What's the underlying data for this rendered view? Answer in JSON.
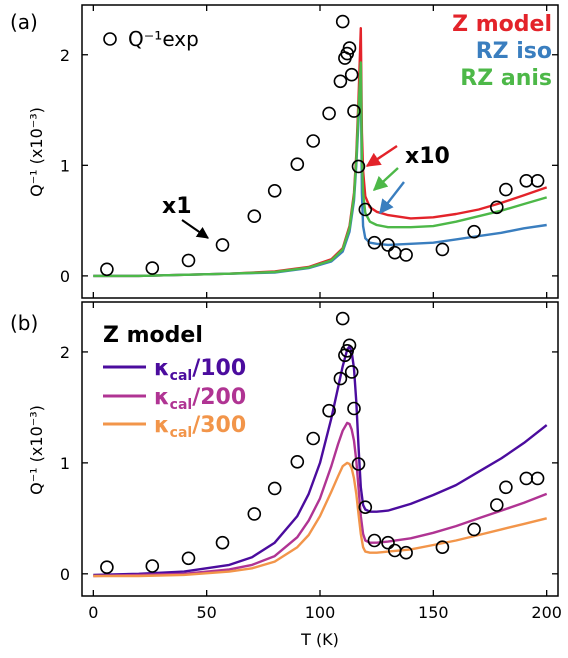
{
  "chart_data": [
    {
      "type": "line",
      "panel_label": "(a)",
      "ylabel": "Q⁻¹ (x10⁻³)",
      "xlim": [
        -5,
        205
      ],
      "ylim": [
        -0.2,
        2.45
      ],
      "xticks": [
        0,
        50,
        100,
        150,
        200
      ],
      "yticks": [
        0,
        1,
        2
      ],
      "experimental": {
        "label": "Q⁻¹exp",
        "x": [
          6,
          26,
          42,
          57,
          71,
          80,
          90,
          97,
          104,
          109,
          110,
          111,
          112,
          113,
          114,
          115,
          117,
          120,
          124,
          130,
          133,
          138,
          154,
          168,
          178,
          182,
          191,
          196
        ],
        "y": [
          0.06,
          0.07,
          0.14,
          0.28,
          0.54,
          0.77,
          1.01,
          1.22,
          1.47,
          1.76,
          2.3,
          1.97,
          2.01,
          2.06,
          1.82,
          1.49,
          0.99,
          0.6,
          0.3,
          0.28,
          0.21,
          0.19,
          0.24,
          0.4,
          0.62,
          0.78,
          0.86,
          0.86
        ]
      },
      "series": [
        {
          "name": "Z model",
          "color": "#e3232a",
          "x": [
            0,
            20,
            40,
            60,
            80,
            95,
            105,
            110,
            113,
            115,
            116,
            117,
            118,
            118.5,
            119,
            120,
            122,
            125,
            130,
            140,
            150,
            160,
            170,
            180,
            190,
            200
          ],
          "y": [
            0,
            0.0,
            0.01,
            0.02,
            0.04,
            0.08,
            0.15,
            0.25,
            0.45,
            0.75,
            1.1,
            1.6,
            2.24,
            1.3,
            0.95,
            0.72,
            0.62,
            0.58,
            0.55,
            0.52,
            0.53,
            0.56,
            0.6,
            0.66,
            0.73,
            0.8
          ]
        },
        {
          "name": "RZ iso",
          "color": "#3a7ebf",
          "x": [
            0,
            20,
            40,
            60,
            80,
            95,
            105,
            110,
            113,
            115,
            116,
            117,
            118,
            118.5,
            119,
            120,
            122,
            125,
            130,
            140,
            150,
            160,
            170,
            180,
            190,
            200
          ],
          "y": [
            0,
            0.0,
            0.01,
            0.02,
            0.03,
            0.07,
            0.13,
            0.22,
            0.4,
            0.68,
            1.0,
            1.4,
            1.8,
            0.75,
            0.45,
            0.34,
            0.3,
            0.29,
            0.28,
            0.29,
            0.3,
            0.33,
            0.36,
            0.39,
            0.43,
            0.46
          ]
        },
        {
          "name": "RZ anis",
          "color": "#4db848",
          "x": [
            0,
            20,
            40,
            60,
            80,
            95,
            105,
            110,
            113,
            115,
            116,
            117,
            118,
            118.5,
            119,
            120,
            122,
            125,
            130,
            140,
            150,
            160,
            170,
            180,
            190,
            200
          ],
          "y": [
            0,
            0.0,
            0.01,
            0.02,
            0.035,
            0.075,
            0.14,
            0.24,
            0.43,
            0.72,
            1.05,
            1.5,
            1.93,
            1.05,
            0.75,
            0.57,
            0.49,
            0.46,
            0.44,
            0.44,
            0.45,
            0.49,
            0.54,
            0.59,
            0.65,
            0.71
          ]
        }
      ],
      "legend": {
        "placement": "top-right",
        "entries": [
          "Z model",
          "RZ iso",
          "RZ anis"
        ]
      },
      "annotations": [
        {
          "text": "x1",
          "color": "#000000"
        },
        {
          "text": "x10",
          "color": "#000000"
        }
      ]
    },
    {
      "type": "line",
      "panel_label": "(b)",
      "xlabel": "T (K)",
      "ylabel": "Q⁻¹ (x10⁻³)",
      "xlim": [
        -5,
        205
      ],
      "ylim": [
        -0.2,
        2.45
      ],
      "xticks": [
        0,
        50,
        100,
        150,
        200
      ],
      "yticks": [
        0,
        1,
        2
      ],
      "legend_title": "Z model",
      "experimental": {
        "x": [
          6,
          26,
          42,
          57,
          71,
          80,
          90,
          97,
          104,
          109,
          110,
          111,
          112,
          113,
          114,
          115,
          117,
          120,
          124,
          130,
          133,
          138,
          154,
          168,
          178,
          182,
          191,
          196
        ],
        "y": [
          0.06,
          0.07,
          0.14,
          0.28,
          0.54,
          0.77,
          1.01,
          1.22,
          1.47,
          1.76,
          2.3,
          1.97,
          2.01,
          2.06,
          1.82,
          1.49,
          0.99,
          0.6,
          0.3,
          0.28,
          0.21,
          0.19,
          0.24,
          0.4,
          0.62,
          0.78,
          0.86,
          0.86
        ]
      },
      "series": [
        {
          "name_main": "κ",
          "name_sub": "cal",
          "name_tail": "/100",
          "color": "#4b0c9e",
          "x": [
            0,
            20,
            40,
            60,
            70,
            80,
            90,
            95,
            100,
            105,
            108,
            110,
            112,
            113,
            114,
            115,
            116,
            117,
            118,
            119,
            120,
            122,
            125,
            130,
            140,
            150,
            160,
            170,
            180,
            190,
            200
          ],
          "y": [
            -0.01,
            0.0,
            0.02,
            0.08,
            0.15,
            0.28,
            0.52,
            0.72,
            1.0,
            1.4,
            1.68,
            1.87,
            2.02,
            2.05,
            2.0,
            1.85,
            1.55,
            1.15,
            0.78,
            0.62,
            0.58,
            0.56,
            0.56,
            0.57,
            0.63,
            0.71,
            0.8,
            0.92,
            1.04,
            1.18,
            1.34
          ]
        },
        {
          "name_main": "κ",
          "name_sub": "cal",
          "name_tail": "/200",
          "color": "#b03493",
          "x": [
            0,
            20,
            40,
            60,
            70,
            80,
            90,
            95,
            100,
            105,
            108,
            110,
            112,
            113,
            114,
            115,
            116,
            117,
            118,
            119,
            120,
            122,
            125,
            130,
            140,
            150,
            160,
            170,
            180,
            190,
            200
          ],
          "y": [
            -0.02,
            -0.01,
            0.0,
            0.04,
            0.08,
            0.16,
            0.33,
            0.48,
            0.68,
            0.97,
            1.17,
            1.29,
            1.36,
            1.35,
            1.3,
            1.2,
            1.02,
            0.78,
            0.52,
            0.36,
            0.3,
            0.28,
            0.28,
            0.29,
            0.32,
            0.37,
            0.43,
            0.5,
            0.57,
            0.64,
            0.72
          ]
        },
        {
          "name_main": "κ",
          "name_sub": "cal",
          "name_tail": "/300",
          "color": "#f2954a",
          "x": [
            0,
            20,
            40,
            60,
            70,
            80,
            90,
            95,
            100,
            105,
            108,
            110,
            112,
            113,
            114,
            115,
            116,
            117,
            118,
            119,
            120,
            122,
            125,
            130,
            140,
            150,
            160,
            170,
            180,
            190,
            200
          ],
          "y": [
            -0.02,
            -0.02,
            -0.01,
            0.02,
            0.05,
            0.11,
            0.24,
            0.35,
            0.52,
            0.74,
            0.88,
            0.97,
            1.0,
            0.99,
            0.95,
            0.86,
            0.72,
            0.54,
            0.36,
            0.24,
            0.2,
            0.19,
            0.19,
            0.2,
            0.22,
            0.26,
            0.3,
            0.35,
            0.4,
            0.45,
            0.5
          ]
        }
      ],
      "legend": {
        "placement": "top-left"
      }
    }
  ]
}
